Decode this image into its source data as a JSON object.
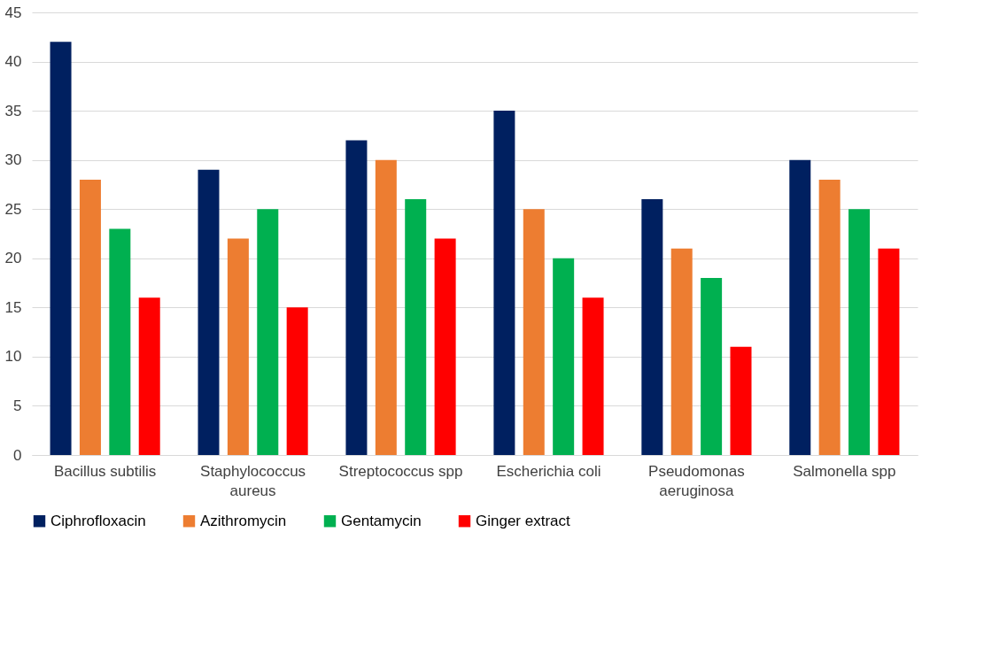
{
  "chart_data": {
    "type": "bar",
    "categories": [
      "Bacillus subtilis",
      "Staphylococcus aureus",
      "Streptococcus spp",
      "Escherichia coli",
      "Pseudomonas aeruginosa",
      "Salmonella spp"
    ],
    "series": [
      {
        "name": "Ciphrofloxacin",
        "color": "#002060",
        "values": [
          42,
          29,
          32,
          35,
          26,
          30
        ]
      },
      {
        "name": "Azithromycin",
        "color": "#ed7d31",
        "values": [
          28,
          22,
          30,
          25,
          21,
          28
        ]
      },
      {
        "name": "Gentamycin",
        "color": "#00b050",
        "values": [
          23,
          25,
          26,
          20,
          18,
          25
        ]
      },
      {
        "name": "Ginger extract",
        "color": "#ff0000",
        "values": [
          16,
          15,
          22,
          16,
          11,
          21
        ]
      }
    ],
    "ylim": [
      0,
      45
    ],
    "yticks": [
      0,
      5,
      10,
      15,
      20,
      25,
      30,
      35,
      40,
      45
    ],
    "grid": "y",
    "legend": "bottom"
  }
}
